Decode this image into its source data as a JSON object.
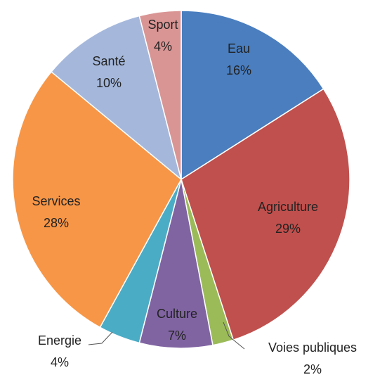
{
  "chart_data": {
    "type": "pie",
    "categories": [
      "Eau",
      "Agriculture",
      "Voies publiques",
      "Culture",
      "Energie",
      "Services",
      "Santé",
      "Sport"
    ],
    "values": [
      16,
      29,
      2,
      7,
      4,
      28,
      10,
      4
    ],
    "value_labels": [
      "16%",
      "29%",
      "2%",
      "7%",
      "4%",
      "28%",
      "10%",
      "4%"
    ],
    "colors": [
      "#4a7ebf",
      "#c0504d",
      "#9bbb59",
      "#8064a2",
      "#4bacc6",
      "#f79646",
      "#a5b8dc",
      "#d99594"
    ]
  }
}
